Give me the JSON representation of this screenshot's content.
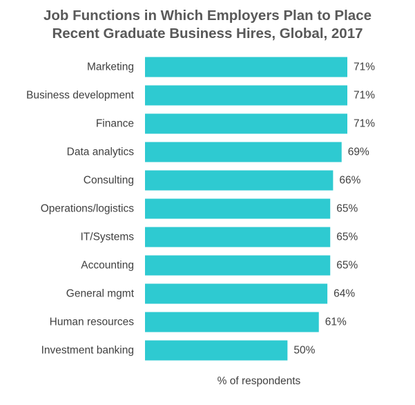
{
  "chart_data": {
    "type": "bar",
    "orientation": "horizontal",
    "title_lines": [
      "Job Functions in Which Employers Plan to Place",
      "Recent Graduate Business Hires, Global, 2017"
    ],
    "categories": [
      "Marketing",
      "Business development",
      "Finance",
      "Data analytics",
      "Consulting",
      "Operations/logistics",
      "IT/Systems",
      "Accounting",
      "General mgmt",
      "Human resources",
      "Investment banking"
    ],
    "values": [
      71,
      71,
      71,
      69,
      66,
      65,
      65,
      65,
      64,
      61,
      50
    ],
    "value_labels": [
      "71%",
      "71%",
      "71%",
      "69%",
      "66%",
      "65%",
      "65%",
      "65%",
      "64%",
      "61%",
      "50%"
    ],
    "xlabel": "% of respondents",
    "ylabel": "",
    "xlim": [
      0,
      71
    ],
    "grid": false,
    "legend": "none",
    "bar_color": "#2ECAD1",
    "text_color": "#404040",
    "title_color": "#595959"
  }
}
